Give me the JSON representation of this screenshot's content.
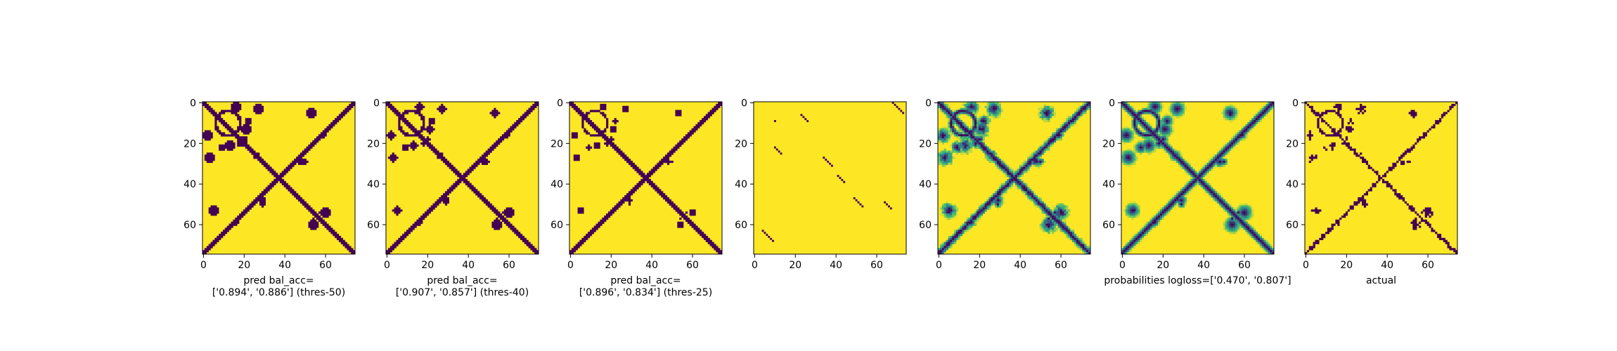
{
  "chart_data": [
    {
      "type": "heatmap",
      "matrix_size": 75,
      "colormap": "viridis-binary",
      "xticks": [
        "0",
        "20",
        "40",
        "60"
      ],
      "yticks": [
        "0",
        "20",
        "40",
        "60"
      ],
      "xlabel_lines": [
        "pred bal_acc=",
        "['0.894', '0.886'] (thres-50)"
      ],
      "style": "pred",
      "threshold": 50
    },
    {
      "type": "heatmap",
      "matrix_size": 75,
      "colormap": "viridis-binary",
      "xticks": [
        "0",
        "20",
        "40",
        "60"
      ],
      "yticks": [
        "0",
        "20",
        "40",
        "60"
      ],
      "xlabel_lines": [
        "pred bal_acc=",
        "['0.907', '0.857'] (thres-40)"
      ],
      "style": "pred",
      "threshold": 40
    },
    {
      "type": "heatmap",
      "matrix_size": 75,
      "colormap": "viridis-binary",
      "xticks": [
        "0",
        "20",
        "40",
        "60"
      ],
      "yticks": [
        "0",
        "20",
        "40",
        "60"
      ],
      "xlabel_lines": [
        "",
        ""
      ],
      "xlabel_lines_note": "",
      "style": "pred",
      "threshold": 25,
      "label_text": [
        "pred bal_acc=",
        "['0.896', '0.834'] (thres-25)"
      ]
    },
    {
      "type": "heatmap",
      "matrix_size": 75,
      "colormap": "viridis-binary",
      "xticks": [
        "0",
        "20",
        "40",
        "60"
      ],
      "yticks": [
        "0",
        "20",
        "40",
        "60"
      ],
      "xlabel_lines": [
        "",
        ""
      ],
      "style": "sparse-diagonals"
    },
    {
      "type": "heatmap",
      "matrix_size": 75,
      "colormap": "viridis",
      "xticks": [
        "0",
        "20",
        "40",
        "60"
      ],
      "yticks": [
        "0",
        "20",
        "40",
        "60"
      ],
      "xlabel_lines": [
        "",
        ""
      ],
      "style": "continuous-noisy"
    },
    {
      "type": "heatmap",
      "matrix_size": 75,
      "colormap": "viridis",
      "xticks": [
        "0",
        "20",
        "40",
        "60"
      ],
      "yticks": [
        "0",
        "20",
        "40",
        "60"
      ],
      "xlabel_lines": [
        "probabilities logloss=['0.470', '0.807']",
        ""
      ],
      "style": "continuous-smooth"
    },
    {
      "type": "heatmap",
      "matrix_size": 75,
      "colormap": "viridis-binary",
      "xticks": [
        "0",
        "20",
        "40",
        "60"
      ],
      "yticks": [
        "0",
        "20",
        "40",
        "60"
      ],
      "xlabel_lines": [
        "actual",
        ""
      ],
      "style": "actual"
    }
  ],
  "colors": {
    "low": "#440154",
    "mid1": "#31688e",
    "mid2": "#35b779",
    "high": "#fde725"
  }
}
